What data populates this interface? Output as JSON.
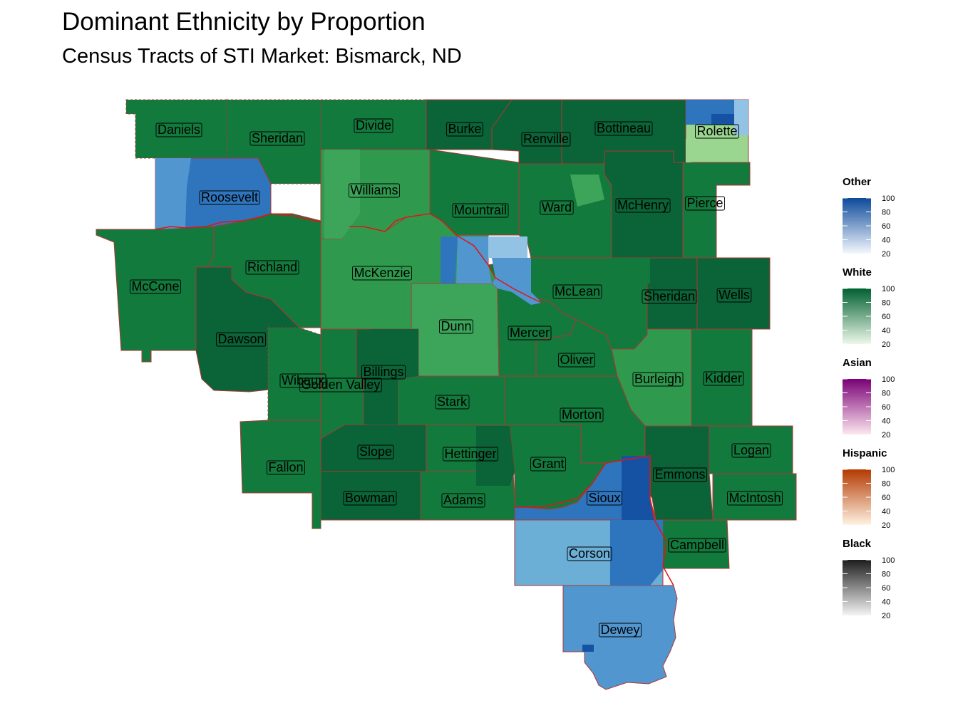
{
  "title": "Dominant Ethnicity by Proportion",
  "subtitle": "Census Tracts of STI Market: Bismarck, ND",
  "palette": {
    "white_dark": "#0a6437",
    "white_mid": "#137a3d",
    "white_light": "#2f9a4e",
    "white_lighter": "#3da55a",
    "white_pale": "#9ad68f",
    "other_dark": "#1552a4",
    "other_mid": "#2e75bd",
    "other_light": "#5196cf",
    "other_pale": "#6baed6",
    "other_paler": "#93c3e4",
    "border": "#b03535"
  },
  "counties": [
    {
      "name": "Daniels",
      "shade": "white_mid"
    },
    {
      "name": "Sheridan",
      "shade": "white_mid"
    },
    {
      "name": "Divide",
      "shade": "white_mid"
    },
    {
      "name": "Burke",
      "shade": "white_dark"
    },
    {
      "name": "Renville",
      "shade": "white_dark"
    },
    {
      "name": "Bottineau",
      "shade": "white_dark"
    },
    {
      "name": "Rolette",
      "shade": "white_pale"
    },
    {
      "name": "Roosevelt",
      "shade": "other_mid"
    },
    {
      "name": "Williams",
      "shade": "white_light"
    },
    {
      "name": "Mountrail",
      "shade": "white_mid"
    },
    {
      "name": "Ward",
      "shade": "white_mid"
    },
    {
      "name": "McHenry",
      "shade": "white_dark"
    },
    {
      "name": "Pierce",
      "shade": "white_mid"
    },
    {
      "name": "McCone",
      "shade": "white_mid"
    },
    {
      "name": "Richland",
      "shade": "white_mid"
    },
    {
      "name": "McKenzie",
      "shade": "white_light"
    },
    {
      "name": "McLean",
      "shade": "white_mid"
    },
    {
      "name": "Sheridan",
      "shade": "white_dark"
    },
    {
      "name": "Wells",
      "shade": "white_dark"
    },
    {
      "name": "Dawson",
      "shade": "white_dark"
    },
    {
      "name": "Dunn",
      "shade": "white_lighter"
    },
    {
      "name": "Mercer",
      "shade": "white_mid"
    },
    {
      "name": "Oliver",
      "shade": "white_mid"
    },
    {
      "name": "Burleigh",
      "shade": "white_light"
    },
    {
      "name": "Kidder",
      "shade": "white_mid"
    },
    {
      "name": "Wibaux",
      "shade": "white_mid"
    },
    {
      "name": "Golden Valley",
      "shade": "white_mid"
    },
    {
      "name": "Billings",
      "shade": "white_dark"
    },
    {
      "name": "Stark",
      "shade": "white_mid"
    },
    {
      "name": "Morton",
      "shade": "white_mid"
    },
    {
      "name": "Fallon",
      "shade": "white_mid"
    },
    {
      "name": "Slope",
      "shade": "white_dark"
    },
    {
      "name": "Hettinger",
      "shade": "white_mid"
    },
    {
      "name": "Grant",
      "shade": "white_mid"
    },
    {
      "name": "Emmons",
      "shade": "white_dark"
    },
    {
      "name": "Logan",
      "shade": "white_mid"
    },
    {
      "name": "Bowman",
      "shade": "white_dark"
    },
    {
      "name": "Adams",
      "shade": "white_mid"
    },
    {
      "name": "Sioux",
      "shade": "other_mid"
    },
    {
      "name": "McIntosh",
      "shade": "white_mid"
    },
    {
      "name": "Corson",
      "shade": "other_pale"
    },
    {
      "name": "Campbell",
      "shade": "white_mid"
    },
    {
      "name": "Dewey",
      "shade": "other_light"
    }
  ],
  "legend": [
    {
      "title": "Other",
      "ticks": [
        "100",
        "80",
        "60",
        "40",
        "20"
      ],
      "low": "#f4f8fd",
      "high": "#0d4a9a"
    },
    {
      "title": "White",
      "ticks": [
        "100",
        "80",
        "60",
        "40",
        "20"
      ],
      "low": "#eef8ea",
      "high": "#006030"
    },
    {
      "title": "Asian",
      "ticks": [
        "100",
        "80",
        "60",
        "40",
        "20"
      ],
      "low": "#fde7ee",
      "high": "#7a0177"
    },
    {
      "title": "Hispanic",
      "ticks": [
        "100",
        "80",
        "60",
        "40",
        "20"
      ],
      "low": "#fff2e3",
      "high": "#b33a00"
    },
    {
      "title": "Black",
      "ticks": [
        "100",
        "80",
        "60",
        "40",
        "20"
      ],
      "low": "#f4f4f4",
      "high": "#1e1e1e"
    }
  ]
}
